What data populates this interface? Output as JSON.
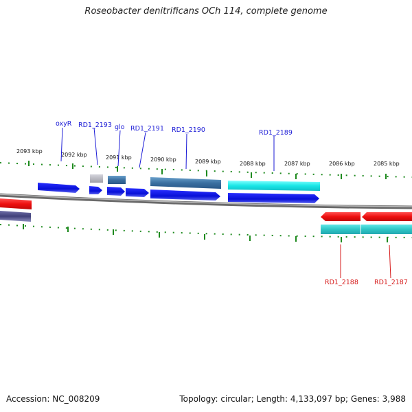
{
  "title": "Roseobacter denitrificans OCh 114, complete genome",
  "footer": {
    "accession": "Accession: NC_008209",
    "summary": "Topology: circular; Length: 4,133,097 bp; Genes: 3,988"
  },
  "scale_labels": [
    "2093 kbp",
    "2092 kbp",
    "2091 kbp",
    "2090 kbp",
    "2089 kbp",
    "2088 kbp",
    "2087 kbp",
    "2086 kbp",
    "2085 kbp"
  ],
  "gene_labels_forward": [
    "oxyR",
    "RD1_2193",
    "glo",
    "RD1_2191",
    "RD1_2190",
    "RD1_2189"
  ],
  "gene_labels_reverse": [
    "RD1_2188",
    "RD1_2187"
  ],
  "colors": {
    "cds": "#0a14e6",
    "gene_teal": "#3a6fa0",
    "gene_cyan": "#18e6e6",
    "reverse_cds": "#ee1010",
    "reverse_gene": "#2ec6c6",
    "pseudo": "#b0b0b8",
    "backbone": "#8a8a8a",
    "tick": "#1e8a1e",
    "label_forward": "#1a1ad6",
    "label_reverse": "#d61a1a"
  }
}
